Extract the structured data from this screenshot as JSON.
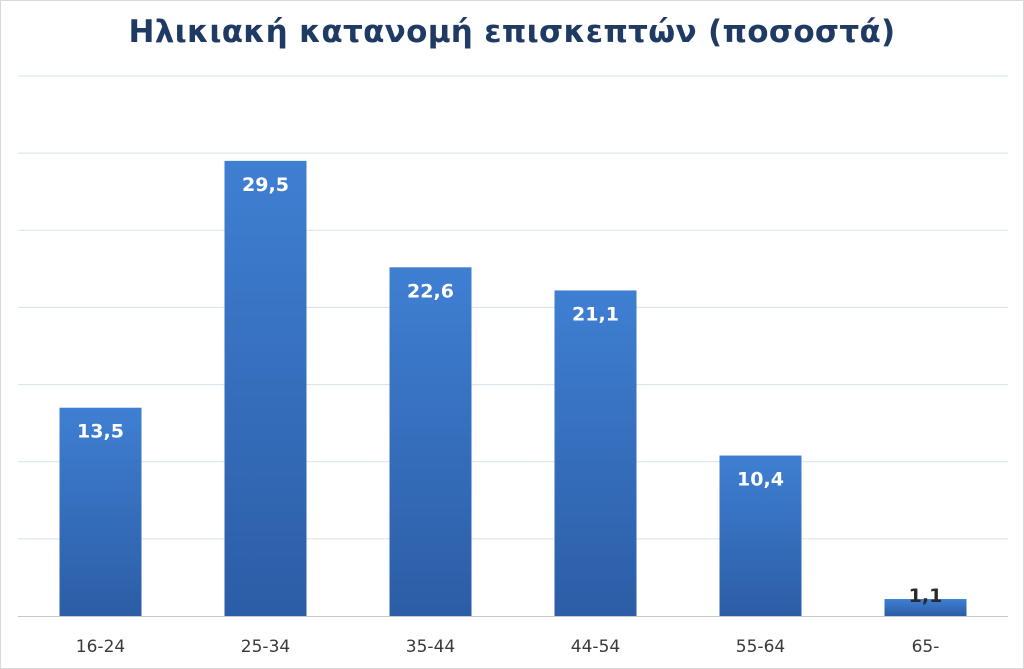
{
  "chart_data": {
    "type": "bar",
    "title": "Ηλικιακή κατανομή επισκεπτών (ποσοστά)",
    "categories": [
      "16-24",
      "25-34",
      "35-44",
      "44-54",
      "55-64",
      "65-"
    ],
    "values": [
      13.5,
      29.5,
      22.6,
      21.1,
      10.4,
      1.1
    ],
    "value_labels": [
      "13,5",
      "29,5",
      "22,6",
      "21,1",
      "10,4",
      "1,1"
    ],
    "ylim": [
      0,
      35
    ],
    "grid": true,
    "legend": "none",
    "colors": {
      "bar_top": "#3f7fd2",
      "bar_bottom": "#2c5da6",
      "grid": "#d6e3ee",
      "axis": "#c8c8c8",
      "title": "#1f3a63",
      "label_inside": "#ffffff",
      "label_outside": "#2b2b2b"
    }
  }
}
